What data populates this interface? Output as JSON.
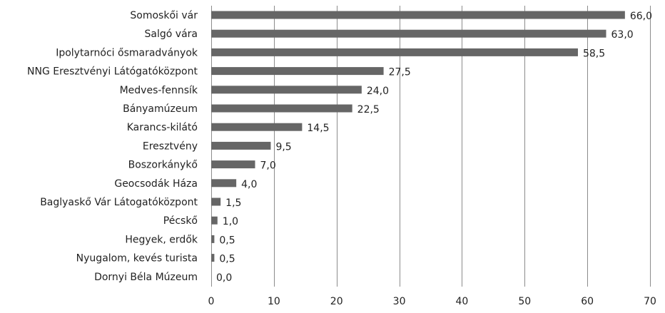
{
  "chart_data": {
    "type": "bar",
    "orientation": "horizontal",
    "categories": [
      "Somoskői vár",
      "Salgó vára",
      "Ipolytarnóci ősmaradványok",
      "NNG Eresztvényi Látógatóközpont",
      "Medves-fennsík",
      "Bányamúzeum",
      "Karancs-kilátó",
      "Eresztvény",
      "Boszorkánykő",
      "Geocsodák Háza",
      "Baglyaskő Vár Látogatóközpont",
      "Pécskő",
      "Hegyek, erdők",
      "Nyugalom, kevés turista",
      "Dornyi Béla Múzeum"
    ],
    "values": [
      66.0,
      63.0,
      58.5,
      27.5,
      24.0,
      22.5,
      14.5,
      9.5,
      7.0,
      4.0,
      1.5,
      1.0,
      0.5,
      0.5,
      0.0
    ],
    "value_labels": [
      "66,0",
      "63,0",
      "58,5",
      "27,5",
      "24,0",
      "22,5",
      "14,5",
      "9,5",
      "7,0",
      "4,0",
      "1,5",
      "1,0",
      "0,5",
      "0,5",
      "0,0"
    ],
    "xlim": [
      0,
      70
    ],
    "xticks": [
      0,
      10,
      20,
      30,
      40,
      50,
      60,
      70
    ],
    "xtick_labels": [
      "0",
      "10",
      "20",
      "30",
      "40",
      "50",
      "60",
      "70"
    ],
    "grid": "vertical",
    "bar_color": "#666666",
    "grid_color": "#8c8c8c",
    "title": "",
    "xlabel": "",
    "ylabel": ""
  }
}
